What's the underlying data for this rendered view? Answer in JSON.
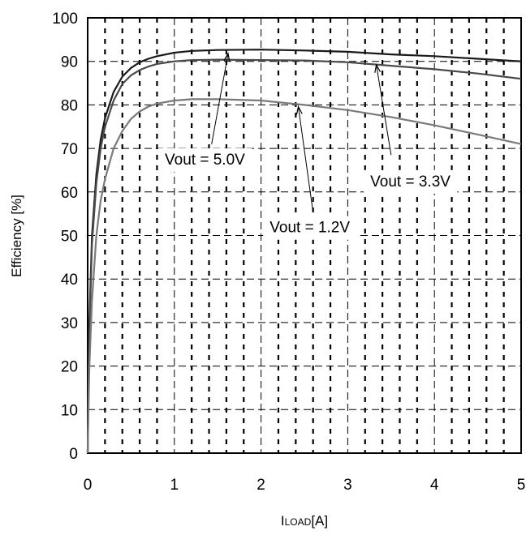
{
  "chart_data": {
    "type": "line",
    "title": "",
    "xlabel": "ILOAD[A]",
    "xlabel_main": "I",
    "xlabel_sub": "LOAD",
    "xlabel_unit": "[A]",
    "ylabel": "Efficiency [%]",
    "xlim": [
      0,
      5
    ],
    "ylim": [
      0,
      100
    ],
    "xticks": [
      "0",
      "1",
      "2",
      "3",
      "4",
      "5"
    ],
    "yticks": [
      "0",
      "10",
      "20",
      "30",
      "40",
      "50",
      "60",
      "70",
      "80",
      "90",
      "100"
    ],
    "grid": true,
    "legend": "none",
    "series": [
      {
        "name": "Vout = 5.0V",
        "color": "#1a1a1a",
        "x": [
          0.0,
          0.02,
          0.05,
          0.1,
          0.15,
          0.2,
          0.3,
          0.4,
          0.5,
          0.6,
          0.7,
          0.8,
          1.0,
          1.2,
          1.5,
          2.0,
          2.5,
          3.0,
          3.5,
          4.0,
          4.5,
          5.0
        ],
        "y": [
          0,
          30,
          50,
          64,
          72,
          77,
          83,
          86.5,
          88.5,
          89.8,
          90.6,
          91.2,
          92,
          92.4,
          92.6,
          92.7,
          92.5,
          92.2,
          91.6,
          91.2,
          90.6,
          90
        ]
      },
      {
        "name": "Vout = 3.3V",
        "color": "#4a4a4a",
        "x": [
          0.0,
          0.02,
          0.05,
          0.1,
          0.15,
          0.2,
          0.3,
          0.4,
          0.5,
          0.6,
          0.7,
          0.8,
          1.0,
          1.2,
          1.5,
          2.0,
          2.5,
          3.0,
          3.5,
          4.0,
          4.5,
          5.0
        ],
        "y": [
          0,
          28,
          48,
          62,
          70,
          75,
          81,
          84.8,
          86.8,
          88,
          88.8,
          89.4,
          90,
          90.3,
          90.4,
          90.3,
          90.2,
          89.8,
          89,
          88.2,
          87.2,
          86
        ]
      },
      {
        "name": "Vout = 1.2V",
        "color": "#7a7a7a",
        "x": [
          0.0,
          0.02,
          0.05,
          0.1,
          0.15,
          0.2,
          0.3,
          0.4,
          0.5,
          0.6,
          0.7,
          0.8,
          1.0,
          1.2,
          1.5,
          2.0,
          2.5,
          3.0,
          3.5,
          4.0,
          4.5,
          5.0
        ],
        "y": [
          0,
          20,
          35,
          50,
          58,
          63,
          70,
          74,
          76.8,
          78.5,
          79.6,
          80.3,
          81,
          81.3,
          81.3,
          81,
          80,
          78.8,
          77.2,
          75.3,
          73.2,
          71
        ]
      }
    ],
    "annotations": [
      {
        "text": "Vout = 5.0V",
        "x": 0.89,
        "y": 66.3,
        "arrow_from": [
          1.43,
          71
        ],
        "arrow_to": [
          1.62,
          91.8
        ]
      },
      {
        "text": "Vout = 3.3V",
        "x": 3.26,
        "y": 61.3,
        "arrow_from": [
          3.5,
          68.5
        ],
        "arrow_to": [
          3.33,
          89.2
        ]
      },
      {
        "text": "Vout = 1.2V",
        "x": 2.1,
        "y": 50.7,
        "arrow_from": [
          2.6,
          55.3
        ],
        "arrow_to": [
          2.43,
          79.6
        ]
      }
    ]
  }
}
